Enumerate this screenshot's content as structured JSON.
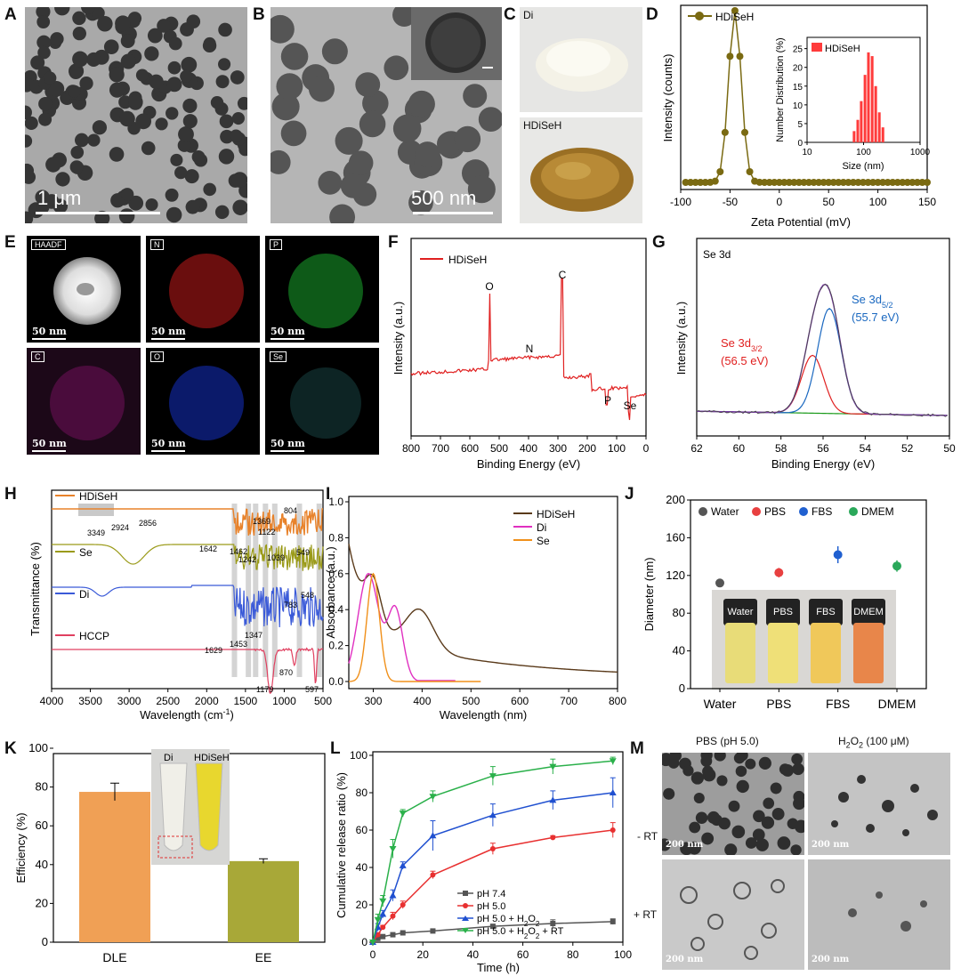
{
  "labels": {
    "A": "A",
    "B": "B",
    "C": "C",
    "D": "D",
    "E": "E",
    "F": "F",
    "G": "G",
    "H": "H",
    "I": "I",
    "J": "J",
    "K": "K",
    "L": "L",
    "M": "M"
  },
  "panelA": {
    "scale": "1 μm"
  },
  "panelB": {
    "scale": "500 nm"
  },
  "panelC": {
    "top": "Di",
    "bottom": "HDiSeH"
  },
  "panelD": {
    "ylabel": "Intensity (counts)",
    "xlabel": "Zeta Potential (mV)",
    "legend": "HDiSeH",
    "xticks": [
      "-100",
      "-50",
      "0",
      "50",
      "100",
      "150"
    ],
    "inset": {
      "ylabel": "Number Distribution (%)",
      "xlabel": "Size (nm)",
      "legend": "HDiSeH",
      "yticks": [
        "0",
        "5",
        "10",
        "15",
        "20",
        "25"
      ],
      "xticks": [
        "10",
        "100",
        "1000"
      ]
    }
  },
  "panelE": {
    "maps": [
      {
        "label": "HAADF",
        "scale": "50 nm"
      },
      {
        "label": "N",
        "scale": "50 nm"
      },
      {
        "label": "P",
        "scale": "50 nm"
      },
      {
        "label": "C",
        "scale": "50 nm"
      },
      {
        "label": "O",
        "scale": "50 nm"
      },
      {
        "label": "Se",
        "scale": "50 nm"
      }
    ]
  },
  "panelF": {
    "ylabel": "Intensity (a.u.)",
    "xlabel": "Binding Energy (eV)",
    "legend": "HDiSeH",
    "xticks": [
      "800",
      "700",
      "600",
      "500",
      "400",
      "300",
      "200",
      "100",
      "0"
    ],
    "peaks": [
      "O",
      "N",
      "C",
      "P",
      "Se"
    ]
  },
  "panelG": {
    "ylabel": "Intensity (a.u.)",
    "xlabel": "Binding Energy (eV)",
    "title": "Se 3d",
    "xticks": [
      "62",
      "60",
      "58",
      "56",
      "54",
      "52",
      "50"
    ],
    "peak1": "Se 3d",
    "peak1sub": "3/2",
    "peak1ev": "(56.5 eV)",
    "peak2": "Se 3d",
    "peak2sub": "5/2",
    "peak2ev": "(55.7 eV)"
  },
  "panelH": {
    "ylabel": "Transmittance (%)",
    "xlabel": "Wavelength (cm",
    "xlabelsup": "-1",
    "xlabelend": ")",
    "xticks": [
      "4000",
      "3500",
      "3000",
      "2500",
      "2000",
      "1500",
      "1000",
      "500"
    ],
    "series": [
      "HDiSeH",
      "Se",
      "Di",
      "HCCP"
    ],
    "annot": [
      "3349",
      "2924",
      "2856",
      "1642",
      "1462",
      "1242",
      "1369",
      "1122",
      "1039",
      "804",
      "549",
      "548",
      "783",
      "1629",
      "1453",
      "1347",
      "870",
      "1179",
      "597"
    ]
  },
  "panelI": {
    "ylabel": "Absorbance (a.u.)",
    "xlabel": "Wavelength (nm)",
    "xticks": [
      "300",
      "400",
      "500",
      "600",
      "700",
      "800"
    ],
    "yticks": [
      "0.0",
      "0.2",
      "0.4",
      "0.6",
      "0.8",
      "1.0"
    ],
    "series": [
      "HDiSeH",
      "Di",
      "Se"
    ]
  },
  "panelJ": {
    "ylabel": "Diameter (nm)",
    "categories": [
      "Water",
      "PBS",
      "FBS",
      "DMEM"
    ],
    "yticks": [
      "0",
      "40",
      "80",
      "120",
      "160",
      "200"
    ],
    "vials": [
      "Water",
      "PBS",
      "FBS",
      "DMEM"
    ]
  },
  "panelK": {
    "ylabel": "Efficiency (%)",
    "categories": [
      "DLE",
      "EE"
    ],
    "yticks": [
      "0",
      "20",
      "40",
      "60",
      "80",
      "100"
    ],
    "inset": [
      "Di",
      "HDiSeH"
    ]
  },
  "panelL": {
    "ylabel": "Cumulative release ratio (%)",
    "xlabel": "Time (h)",
    "xticks": [
      "0",
      "20",
      "40",
      "60",
      "80",
      "100"
    ],
    "yticks": [
      "0",
      "20",
      "40",
      "60",
      "80",
      "100"
    ],
    "series": [
      "pH 7.4",
      "pH 5.0",
      "pH 5.0 + H",
      "pH 5.0 + H"
    ],
    "h2o2": "O",
    "sub2": "2",
    "rt": " + RT"
  },
  "panelM": {
    "col1": "PBS  (pH 5.0)",
    "col2": "H",
    "col2sub": "2",
    "col2mid": "O",
    "col2end": " (100 μM)",
    "row1": "- RT",
    "row2": "+ RT",
    "scale": "200 nm"
  },
  "chart_data": [
    {
      "panel": "D",
      "type": "line",
      "xlabel": "Zeta Potential (mV)",
      "ylabel": "Intensity (counts)",
      "series": [
        {
          "name": "HDiSeH",
          "x": [
            -100,
            -70,
            -60,
            -55,
            -50,
            -45,
            -40,
            -35,
            -30,
            -25,
            0,
            50,
            100,
            150
          ],
          "y": [
            0,
            0,
            0.05,
            0.3,
            0.7,
            1.0,
            0.7,
            0.3,
            0.05,
            0,
            0,
            0,
            0,
            0
          ]
        }
      ]
    },
    {
      "panel": "D-inset",
      "type": "bar",
      "xlabel": "Size (nm)",
      "ylabel": "Number Distribution (%)",
      "series": [
        {
          "name": "HDiSeH",
          "x": [
            68,
            79,
            91,
            106,
            122,
            142,
            164,
            190,
            220
          ],
          "y": [
            3,
            6,
            11,
            18,
            24,
            23,
            15,
            8,
            4
          ]
        }
      ]
    },
    {
      "panel": "J",
      "type": "scatter",
      "ylabel": "Diameter (nm)",
      "categories": [
        "Water",
        "PBS",
        "FBS",
        "DMEM"
      ],
      "values": [
        112,
        123,
        142,
        130
      ],
      "errors": [
        4,
        5,
        9,
        6
      ],
      "ylim": [
        0,
        200
      ]
    },
    {
      "panel": "K",
      "type": "bar",
      "ylabel": "Efficiency (%)",
      "categories": [
        "DLE",
        "EE"
      ],
      "values": [
        77.5,
        41.8
      ],
      "errors": [
        4.5,
        1.2
      ],
      "ylim": [
        0,
        100
      ]
    },
    {
      "panel": "L",
      "type": "line",
      "xlabel": "Time (h)",
      "ylabel": "Cumulative release ratio (%)",
      "x": [
        0,
        2,
        4,
        8,
        12,
        24,
        48,
        72,
        96
      ],
      "series": [
        {
          "name": "pH 7.4",
          "values": [
            0,
            2,
            3,
            4,
            5,
            6,
            8.5,
            10,
            11
          ],
          "errors": [
            0,
            0.5,
            0.5,
            0.5,
            0.5,
            1,
            1,
            2,
            1.5
          ]
        },
        {
          "name": "pH 5.0",
          "values": [
            0,
            4,
            8,
            14,
            20,
            36,
            50,
            56,
            60
          ],
          "errors": [
            0,
            1,
            1,
            2,
            2,
            2,
            3,
            1,
            4
          ]
        },
        {
          "name": "pH 5.0 + H2O2",
          "values": [
            0,
            8,
            15,
            25,
            41,
            57,
            68,
            76,
            80
          ],
          "errors": [
            0,
            2,
            2,
            3,
            2,
            8,
            6,
            5,
            8
          ]
        },
        {
          "name": "pH 5.0 + H2O2 + RT",
          "values": [
            0,
            12,
            22,
            50,
            69,
            78,
            89,
            94,
            97
          ],
          "errors": [
            0,
            3,
            3,
            5,
            2,
            3,
            5,
            4,
            2
          ]
        }
      ],
      "xlim": [
        0,
        100
      ],
      "ylim": [
        0,
        100
      ]
    }
  ]
}
